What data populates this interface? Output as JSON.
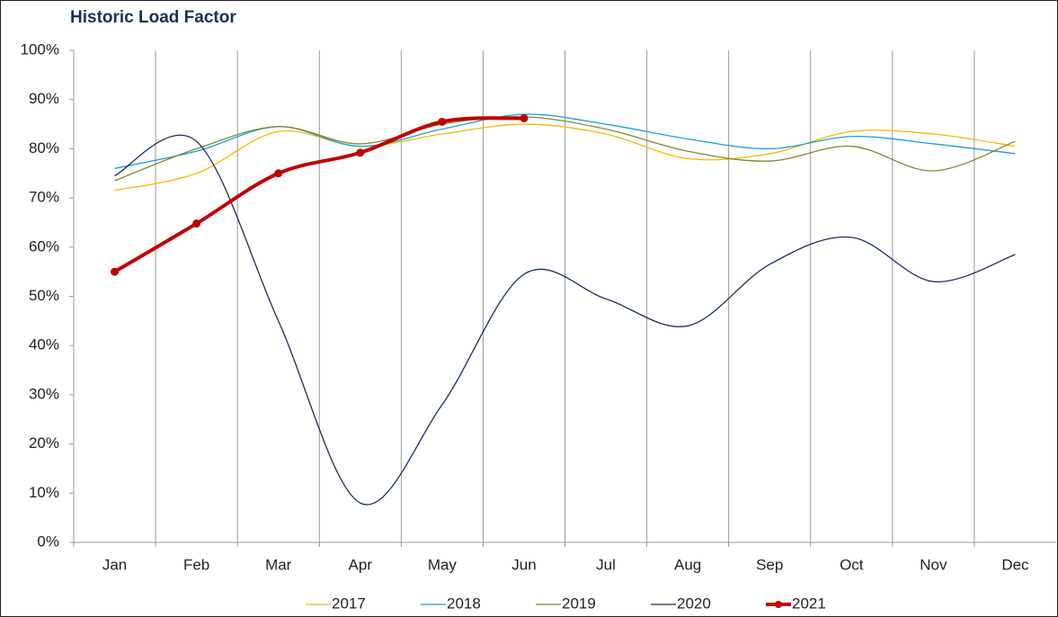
{
  "chart_data": {
    "type": "line",
    "title": "Historic Load Factor",
    "categories": [
      "Jan",
      "Feb",
      "Mar",
      "Apr",
      "May",
      "Jun",
      "Jul",
      "Aug",
      "Sep",
      "Oct",
      "Nov",
      "Dec"
    ],
    "series": [
      {
        "name": "2017",
        "color": "#f5b800",
        "values": [
          71.5,
          75,
          83.5,
          80.5,
          83,
          85,
          83,
          78,
          79,
          83.5,
          83,
          80.5
        ]
      },
      {
        "name": "2018",
        "color": "#1a9fd4",
        "values": [
          76,
          79.5,
          84.5,
          80.5,
          84,
          87,
          85,
          82,
          80,
          82.5,
          81,
          79
        ]
      },
      {
        "name": "2019",
        "color": "#7a8a2e",
        "values": [
          73.5,
          80,
          84.5,
          81,
          85,
          86.5,
          84,
          79.5,
          77.5,
          80.5,
          75.5,
          81.5
        ]
      },
      {
        "name": "2020",
        "color": "#1a2e5a",
        "values": [
          74.5,
          81.5,
          45,
          8,
          28,
          54.5,
          49.5,
          44,
          56.5,
          62,
          53,
          58.5
        ]
      },
      {
        "name": "2021",
        "color": "#c00000",
        "markers": true,
        "values": [
          55,
          64.8,
          75,
          79.2,
          85.5,
          86.2,
          null,
          null,
          null,
          null,
          null,
          null
        ]
      }
    ],
    "ylim": [
      0,
      100
    ],
    "yticks": [
      {
        "value": 0,
        "label": "0%"
      },
      {
        "value": 10,
        "label": "10%"
      },
      {
        "value": 20,
        "label": "20%"
      },
      {
        "value": 30,
        "label": "30%"
      },
      {
        "value": 40,
        "label": "40%"
      },
      {
        "value": 50,
        "label": "50%"
      },
      {
        "value": 60,
        "label": "60%"
      },
      {
        "value": 70,
        "label": "70%"
      },
      {
        "value": 80,
        "label": "80%"
      },
      {
        "value": 90,
        "label": "90%"
      },
      {
        "value": 100,
        "label": "100%"
      }
    ],
    "grid": false,
    "smooth": true,
    "legend": "bottom"
  }
}
